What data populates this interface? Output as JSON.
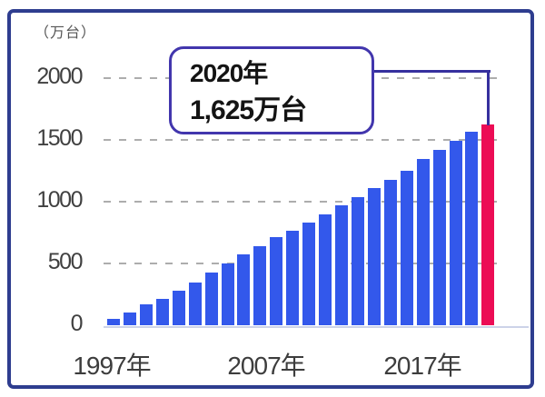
{
  "chart_data": {
    "type": "bar",
    "title": "",
    "unit_label": "（万台）",
    "categories": [
      "1997",
      "1998",
      "1999",
      "2000",
      "2001",
      "2002",
      "2003",
      "2004",
      "2005",
      "2006",
      "2007",
      "2008",
      "2009",
      "2010",
      "2011",
      "2012",
      "2013",
      "2014",
      "2015",
      "2016",
      "2017",
      "2018",
      "2019",
      "2020"
    ],
    "values": [
      55,
      100,
      170,
      215,
      280,
      345,
      425,
      500,
      570,
      640,
      710,
      765,
      830,
      900,
      970,
      1040,
      1110,
      1180,
      1250,
      1345,
      1420,
      1490,
      1565,
      1625
    ],
    "yticks": [
      2000,
      1500,
      1000,
      500,
      0
    ],
    "ylim": [
      0,
      2100
    ],
    "xtick_labels": [
      "1997年",
      "2007年",
      "2017年"
    ],
    "grid": "dashed horizontal at 500 intervals",
    "legend": "none",
    "bar_color": "#3358eb",
    "highlight_index": 23,
    "highlight_color": "#ec0c55",
    "annotation": {
      "line1": "2020年",
      "line2": "1,625万台",
      "points_to_category": "2020"
    }
  },
  "colors": {
    "frame_border": "#2e3d8f",
    "callout_border": "#4236ad",
    "connector_line": "#36309e",
    "gridline": "#adadad",
    "tick_text": "#404040",
    "unit_text": "#555555",
    "background": "#ffffff"
  }
}
